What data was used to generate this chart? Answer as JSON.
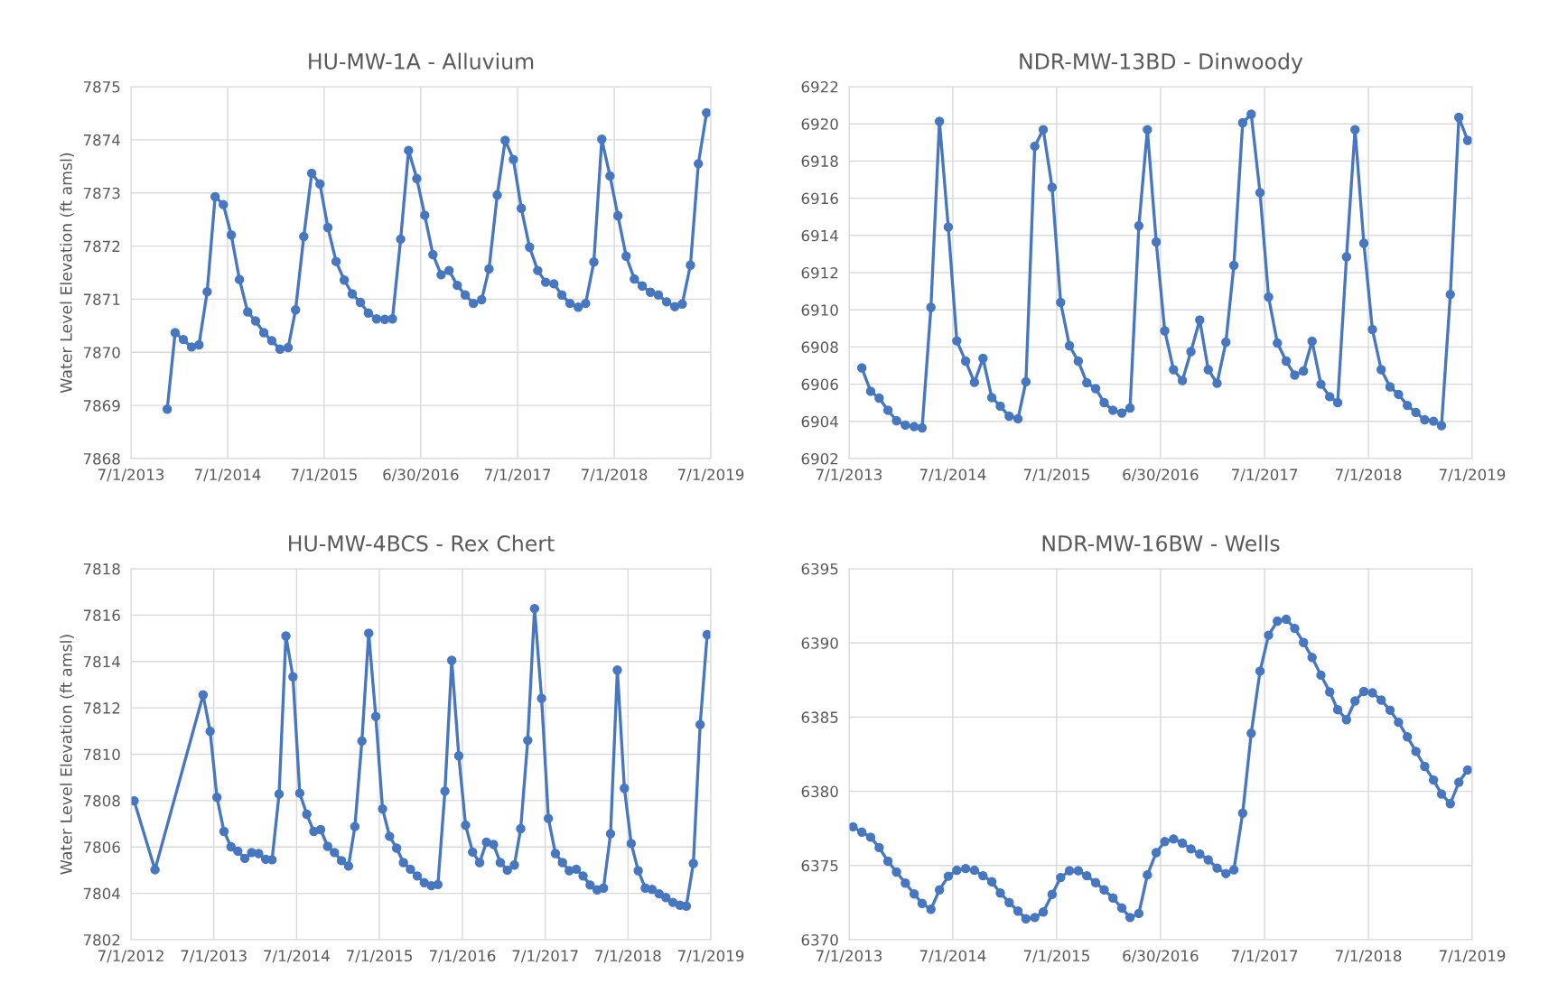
{
  "chart_data": [
    {
      "type": "line",
      "title": "HU-MW-1A - Alluvium",
      "ylabel": "Water Level Elevation (ft amsl)",
      "grid": true,
      "marker": "circle",
      "line_style": "solid",
      "x": [
        "2013-11-15",
        "2013-12-15",
        "2014-01-15",
        "2014-02-15",
        "2014-03-15",
        "2014-04-15",
        "2014-05-15",
        "2014-06-15",
        "2014-07-15",
        "2014-08-15",
        "2014-09-15",
        "2014-10-15",
        "2014-11-15",
        "2014-12-15",
        "2015-01-15",
        "2015-02-15",
        "2015-03-15",
        "2015-04-15",
        "2015-05-15",
        "2015-06-15",
        "2015-07-15",
        "2015-08-15",
        "2015-09-15",
        "2015-10-15",
        "2015-11-15",
        "2015-12-15",
        "2016-01-15",
        "2016-02-15",
        "2016-03-15",
        "2016-04-15",
        "2016-05-15",
        "2016-06-15",
        "2016-07-15",
        "2016-08-15",
        "2016-09-15",
        "2016-10-15",
        "2016-11-15",
        "2016-12-15",
        "2017-01-15",
        "2017-02-15",
        "2017-03-15",
        "2017-04-15",
        "2017-05-15",
        "2017-06-15",
        "2017-07-15",
        "2017-08-15",
        "2017-09-15",
        "2017-10-15",
        "2017-11-15",
        "2017-12-15",
        "2018-01-15",
        "2018-02-15",
        "2018-03-15",
        "2018-04-15",
        "2018-05-15",
        "2018-06-15",
        "2018-07-15",
        "2018-08-15",
        "2018-09-15",
        "2018-10-15",
        "2018-11-15",
        "2018-12-15",
        "2019-01-15",
        "2019-02-15",
        "2019-03-15",
        "2019-04-15",
        "2019-05-15",
        "2019-06-15"
      ],
      "series": [
        {
          "color": "#4677c0",
          "values": [
            7868.93,
            7870.37,
            7870.24,
            7870.1,
            7870.14,
            7871.14,
            7872.93,
            7872.78,
            7872.21,
            7871.37,
            7870.76,
            7870.59,
            7870.37,
            7870.22,
            7870.06,
            7870.09,
            7870.8,
            7872.18,
            7873.37,
            7873.17,
            7872.35,
            7871.71,
            7871.36,
            7871.1,
            7870.94,
            7870.74,
            7870.63,
            7870.62,
            7870.63,
            7872.13,
            7873.8,
            7873.27,
            7872.58,
            7871.84,
            7871.46,
            7871.54,
            7871.26,
            7871.08,
            7870.92,
            7870.99,
            7871.57,
            7872.96,
            7873.99,
            7873.63,
            7872.71,
            7871.98,
            7871.54,
            7871.32,
            7871.29,
            7871.08,
            7870.92,
            7870.85,
            7870.92,
            7871.7,
            7874.01,
            7873.32,
            7872.57,
            7871.81,
            7871.38,
            7871.25,
            7871.13,
            7871.08,
            7870.95,
            7870.86,
            7870.91,
            7871.64,
            7873.55,
            7874.51
          ]
        }
      ],
      "xlim": [
        "2013-07-01",
        "2019-07-01"
      ],
      "ylim": [
        7868,
        7875
      ],
      "yticks": [
        7868,
        7869,
        7870,
        7871,
        7872,
        7873,
        7874,
        7875
      ],
      "xticks": [
        {
          "value": "2013-07-01",
          "label": "7/1/2013"
        },
        {
          "value": "2014-07-01",
          "label": "7/1/2014"
        },
        {
          "value": "2015-07-01",
          "label": "7/1/2015"
        },
        {
          "value": "2016-06-30",
          "label": "6/30/2016"
        },
        {
          "value": "2017-07-01",
          "label": "7/1/2017"
        },
        {
          "value": "2018-07-01",
          "label": "7/1/2018"
        },
        {
          "value": "2019-07-01",
          "label": "7/1/2019"
        }
      ]
    },
    {
      "type": "line",
      "title": "NDR-MW-13BD - Dinwoody",
      "grid": true,
      "marker": "circle",
      "line_style": "solid",
      "x": [
        "2013-08-15",
        "2013-09-15",
        "2013-10-15",
        "2013-11-15",
        "2013-12-15",
        "2014-01-15",
        "2014-02-15",
        "2014-03-15",
        "2014-04-15",
        "2014-05-15",
        "2014-06-15",
        "2014-07-15",
        "2014-08-15",
        "2014-09-15",
        "2014-10-15",
        "2014-11-15",
        "2014-12-15",
        "2015-01-15",
        "2015-02-15",
        "2015-03-15",
        "2015-04-15",
        "2015-05-15",
        "2015-06-15",
        "2015-07-15",
        "2015-08-15",
        "2015-09-15",
        "2015-10-15",
        "2015-11-15",
        "2015-12-15",
        "2016-01-15",
        "2016-02-15",
        "2016-03-15",
        "2016-04-15",
        "2016-05-15",
        "2016-06-15",
        "2016-07-15",
        "2016-08-15",
        "2016-09-15",
        "2016-10-15",
        "2016-11-15",
        "2016-12-15",
        "2017-01-15",
        "2017-02-15",
        "2017-03-15",
        "2017-04-15",
        "2017-05-15",
        "2017-06-15",
        "2017-07-15",
        "2017-08-15",
        "2017-09-15",
        "2017-10-15",
        "2017-11-15",
        "2017-12-15",
        "2018-01-15",
        "2018-02-15",
        "2018-03-15",
        "2018-04-15",
        "2018-05-15",
        "2018-06-15",
        "2018-07-15",
        "2018-08-15",
        "2018-09-15",
        "2018-10-15",
        "2018-11-15",
        "2018-12-15",
        "2019-01-15",
        "2019-02-15",
        "2019-03-15",
        "2019-04-15",
        "2019-05-15",
        "2019-06-15"
      ],
      "series": [
        {
          "color": "#4677c0",
          "values": [
            6906.88,
            6905.62,
            6905.25,
            6904.6,
            6904.04,
            6903.8,
            6903.72,
            6903.65,
            6910.13,
            6920.13,
            6914.45,
            6908.33,
            6907.24,
            6906.1,
            6907.39,
            6905.28,
            6904.82,
            6904.28,
            6904.14,
            6906.13,
            6918.8,
            6919.69,
            6916.59,
            6910.4,
            6908.07,
            6907.24,
            6906.08,
            6905.76,
            6905.01,
            6904.6,
            6904.45,
            6904.72,
            6914.52,
            6919.69,
            6913.65,
            6908.87,
            6906.78,
            6906.2,
            6907.75,
            6909.45,
            6906.78,
            6906.05,
            6908.26,
            6912.39,
            6920.06,
            6920.52,
            6916.3,
            6910.69,
            6908.21,
            6907.24,
            6906.49,
            6906.71,
            6908.31,
            6906.0,
            6905.33,
            6905.01,
            6912.85,
            6919.69,
            6913.58,
            6908.94,
            6906.78,
            6905.86,
            6905.45,
            6904.86,
            6904.48,
            6904.09,
            6904.01,
            6903.77,
            6910.83,
            6920.35,
            6919.11
          ]
        }
      ],
      "xlim": [
        "2013-07-01",
        "2019-07-01"
      ],
      "ylim": [
        6902,
        6922
      ],
      "yticks": [
        6902,
        6904,
        6906,
        6908,
        6910,
        6912,
        6914,
        6916,
        6918,
        6920,
        6922
      ],
      "xticks": [
        {
          "value": "2013-07-01",
          "label": "7/1/2013"
        },
        {
          "value": "2014-07-01",
          "label": "7/1/2014"
        },
        {
          "value": "2015-07-01",
          "label": "7/1/2015"
        },
        {
          "value": "2016-06-30",
          "label": "6/30/2016"
        },
        {
          "value": "2017-07-01",
          "label": "7/1/2017"
        },
        {
          "value": "2018-07-01",
          "label": "7/1/2018"
        },
        {
          "value": "2019-07-01",
          "label": "7/1/2019"
        }
      ]
    },
    {
      "type": "line",
      "title": "HU-MW-4BCS - Rex Chert",
      "ylabel": "Water Level Elevation (ft amsl)",
      "grid": true,
      "marker": "circle",
      "line_style": "solid",
      "x": [
        "2012-07-15",
        "2012-10-15",
        "2013-05-15",
        "2013-06-15",
        "2013-07-15",
        "2013-08-15",
        "2013-09-15",
        "2013-10-15",
        "2013-11-15",
        "2013-12-15",
        "2014-01-15",
        "2014-02-15",
        "2014-03-15",
        "2014-04-15",
        "2014-05-15",
        "2014-06-15",
        "2014-07-15",
        "2014-08-15",
        "2014-09-15",
        "2014-10-15",
        "2014-11-15",
        "2014-12-15",
        "2015-01-15",
        "2015-02-15",
        "2015-03-15",
        "2015-04-15",
        "2015-05-15",
        "2015-06-15",
        "2015-07-15",
        "2015-08-15",
        "2015-09-15",
        "2015-10-15",
        "2015-11-15",
        "2015-12-15",
        "2016-01-15",
        "2016-02-15",
        "2016-03-15",
        "2016-04-15",
        "2016-05-15",
        "2016-06-15",
        "2016-07-15",
        "2016-08-15",
        "2016-09-15",
        "2016-10-15",
        "2016-11-15",
        "2016-12-15",
        "2017-01-15",
        "2017-02-15",
        "2017-03-15",
        "2017-04-15",
        "2017-05-15",
        "2017-06-15",
        "2017-07-15",
        "2017-08-15",
        "2017-09-15",
        "2017-10-15",
        "2017-11-15",
        "2017-12-15",
        "2018-01-15",
        "2018-02-15",
        "2018-03-15",
        "2018-04-15",
        "2018-05-15",
        "2018-06-15",
        "2018-07-15",
        "2018-08-15",
        "2018-09-15",
        "2018-10-15",
        "2018-11-15",
        "2018-12-15",
        "2019-01-15",
        "2019-02-15",
        "2019-03-15",
        "2019-04-15",
        "2019-05-15",
        "2019-06-15"
      ],
      "series": [
        {
          "color": "#4677c0",
          "values": [
            7807.99,
            7805.02,
            7812.56,
            7810.99,
            7808.14,
            7806.67,
            7806.01,
            7805.82,
            7805.51,
            7805.76,
            7805.72,
            7805.47,
            7805.45,
            7808.28,
            7815.1,
            7813.34,
            7808.32,
            7807.41,
            7806.67,
            7806.75,
            7806.03,
            7805.76,
            7805.41,
            7805.18,
            7806.88,
            7810.57,
            7815.22,
            7811.63,
            7807.64,
            7806.46,
            7805.95,
            7805.33,
            7805.04,
            7804.75,
            7804.46,
            7804.33,
            7804.38,
            7808.41,
            7814.05,
            7809.93,
            7806.94,
            7805.78,
            7805.33,
            7806.21,
            7806.11,
            7805.33,
            7805.0,
            7805.22,
            7806.79,
            7810.6,
            7816.28,
            7812.41,
            7807.23,
            7805.72,
            7805.33,
            7804.98,
            7805.04,
            7804.75,
            7804.36,
            7804.15,
            7804.23,
            7806.57,
            7813.63,
            7808.53,
            7806.15,
            7804.98,
            7804.23,
            7804.17,
            7803.98,
            7803.82,
            7803.61,
            7803.49,
            7803.45,
            7805.29,
            7811.28,
            7815.16
          ]
        }
      ],
      "xlim": [
        "2012-07-01",
        "2019-07-01"
      ],
      "ylim": [
        7802,
        7818
      ],
      "yticks": [
        7802,
        7804,
        7806,
        7808,
        7810,
        7812,
        7814,
        7816,
        7818
      ],
      "xticks": [
        {
          "value": "2012-07-01",
          "label": "7/1/2012"
        },
        {
          "value": "2013-07-01",
          "label": "7/1/2013"
        },
        {
          "value": "2014-07-01",
          "label": "7/1/2014"
        },
        {
          "value": "2015-07-01",
          "label": "7/1/2015"
        },
        {
          "value": "2016-07-01",
          "label": "7/1/2016"
        },
        {
          "value": "2017-07-01",
          "label": "7/1/2017"
        },
        {
          "value": "2018-07-01",
          "label": "7/1/2018"
        },
        {
          "value": "2019-07-01",
          "label": "7/1/2019"
        }
      ]
    },
    {
      "type": "line",
      "title": "NDR-MW-16BW - Wells",
      "grid": true,
      "marker": "circle",
      "line_style": "solid",
      "x": [
        "2013-07-15",
        "2013-08-15",
        "2013-09-15",
        "2013-10-15",
        "2013-11-15",
        "2013-12-15",
        "2014-01-15",
        "2014-02-15",
        "2014-03-15",
        "2014-04-15",
        "2014-05-15",
        "2014-06-15",
        "2014-07-15",
        "2014-08-15",
        "2014-09-15",
        "2014-10-15",
        "2014-11-15",
        "2014-12-15",
        "2015-01-15",
        "2015-02-15",
        "2015-03-15",
        "2015-04-15",
        "2015-05-15",
        "2015-06-15",
        "2015-07-15",
        "2015-08-15",
        "2015-09-15",
        "2015-10-15",
        "2015-11-15",
        "2015-12-15",
        "2016-01-15",
        "2016-02-15",
        "2016-03-15",
        "2016-04-15",
        "2016-05-15",
        "2016-06-15",
        "2016-07-15",
        "2016-08-15",
        "2016-09-15",
        "2016-10-15",
        "2016-11-15",
        "2016-12-15",
        "2017-01-15",
        "2017-02-15",
        "2017-03-15",
        "2017-04-15",
        "2017-05-15",
        "2017-06-15",
        "2017-07-15",
        "2017-08-15",
        "2017-09-15",
        "2017-10-15",
        "2017-11-15",
        "2017-12-15",
        "2018-01-15",
        "2018-02-15",
        "2018-03-15",
        "2018-04-15",
        "2018-05-15",
        "2018-06-15",
        "2018-07-15",
        "2018-08-15",
        "2018-09-15",
        "2018-10-15",
        "2018-11-15",
        "2018-12-15",
        "2019-01-15",
        "2019-02-15",
        "2019-03-15",
        "2019-04-15",
        "2019-05-15",
        "2019-06-15"
      ],
      "series": [
        {
          "color": "#4677c0",
          "values": [
            6377.61,
            6377.25,
            6376.91,
            6376.21,
            6375.29,
            6374.56,
            6373.82,
            6373.09,
            6372.45,
            6372.05,
            6373.36,
            6374.28,
            6374.68,
            6374.8,
            6374.68,
            6374.31,
            6373.91,
            6373.15,
            6372.51,
            6371.93,
            6371.41,
            6371.5,
            6371.87,
            6373.06,
            6374.19,
            6374.65,
            6374.65,
            6374.31,
            6373.85,
            6373.36,
            6372.81,
            6372.14,
            6371.5,
            6371.77,
            6374.37,
            6375.87,
            6376.61,
            6376.79,
            6376.51,
            6376.12,
            6375.78,
            6375.38,
            6374.83,
            6374.46,
            6374.71,
            6378.53,
            6383.91,
            6388.1,
            6390.52,
            6391.47,
            6391.59,
            6390.98,
            6390.03,
            6389.02,
            6387.83,
            6386.7,
            6385.5,
            6384.83,
            6386.09,
            6386.73,
            6386.64,
            6386.15,
            6385.47,
            6384.65,
            6383.67,
            6382.69,
            6381.68,
            6380.76,
            6379.82,
            6379.17,
            6380.61,
            6381.44
          ]
        }
      ],
      "xlim": [
        "2013-07-01",
        "2019-07-01"
      ],
      "ylim": [
        6370,
        6395
      ],
      "yticks": [
        6370,
        6375,
        6380,
        6385,
        6390,
        6395
      ],
      "xticks": [
        {
          "value": "2013-07-01",
          "label": "7/1/2013"
        },
        {
          "value": "2014-07-01",
          "label": "7/1/2014"
        },
        {
          "value": "2015-07-01",
          "label": "7/1/2015"
        },
        {
          "value": "2016-06-30",
          "label": "6/30/2016"
        },
        {
          "value": "2017-07-01",
          "label": "7/1/2017"
        },
        {
          "value": "2018-07-01",
          "label": "7/1/2018"
        },
        {
          "value": "2019-07-01",
          "label": "7/1/2019"
        }
      ]
    }
  ]
}
